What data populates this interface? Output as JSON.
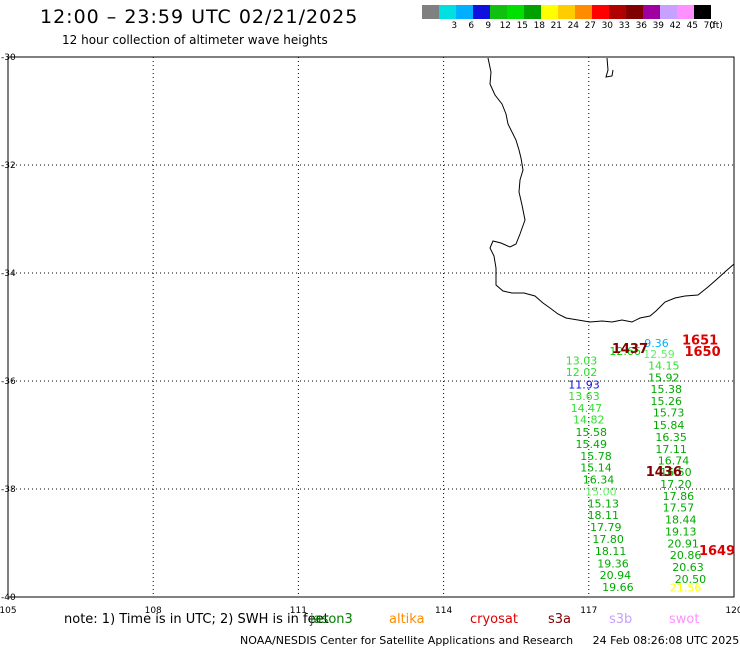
{
  "header": {
    "title": "12:00 – 23:59 UTC 02/21/2025",
    "subtitle": "12 hour collection of altimeter wave heights"
  },
  "scale": {
    "unit": "(ft)",
    "levels": [
      {
        "label": "",
        "color": "#808080"
      },
      {
        "label": "3",
        "color": "#00e0e0"
      },
      {
        "label": "6",
        "color": "#00b0ff"
      },
      {
        "label": "9",
        "color": "#1010e0"
      },
      {
        "label": "12",
        "color": "#10c010"
      },
      {
        "label": "15",
        "color": "#00e000"
      },
      {
        "label": "18",
        "color": "#00a000"
      },
      {
        "label": "21",
        "color": "#ffff00"
      },
      {
        "label": "24",
        "color": "#ffcc00"
      },
      {
        "label": "27",
        "color": "#ff8c00"
      },
      {
        "label": "30",
        "color": "#ff0000"
      },
      {
        "label": "33",
        "color": "#b00000"
      },
      {
        "label": "36",
        "color": "#800000"
      },
      {
        "label": "39",
        "color": "#a000a0"
      },
      {
        "label": "42",
        "color": "#c8a0ff"
      },
      {
        "label": "45",
        "color": "#ff90ff"
      },
      {
        "label": "70",
        "color": "#000000"
      }
    ]
  },
  "map": {
    "lat_range": [
      -40,
      -30
    ],
    "lon_range": [
      105,
      120
    ],
    "lat_ticks": [
      "-30",
      "-32",
      "-34",
      "-36",
      "-38",
      "-40"
    ],
    "lon_ticks": [
      "105",
      "108",
      "111",
      "114",
      "117",
      "120"
    ],
    "grid": "dotted",
    "observations": [
      {
        "v": "12.66",
        "lon": 117.75,
        "lat": -35.52,
        "color": "#00cc00"
      },
      {
        "v": "13.03",
        "lon": 116.85,
        "lat": -35.69,
        "color": "#33dd33"
      },
      {
        "v": "12.02",
        "lon": 116.85,
        "lat": -35.91,
        "color": "#33dd33"
      },
      {
        "v": "11.93",
        "lon": 116.9,
        "lat": -36.14,
        "color": "#1010e0"
      },
      {
        "v": "13.63",
        "lon": 116.9,
        "lat": -36.35,
        "color": "#33dd33"
      },
      {
        "v": "14.47",
        "lon": 116.95,
        "lat": -36.57,
        "color": "#33dd33"
      },
      {
        "v": "14.82",
        "lon": 117.0,
        "lat": -36.79,
        "color": "#33dd33"
      },
      {
        "v": "15.58",
        "lon": 117.05,
        "lat": -37.02,
        "color": "#00aa00"
      },
      {
        "v": "15.49",
        "lon": 117.05,
        "lat": -37.24,
        "color": "#00aa00"
      },
      {
        "v": "15.78",
        "lon": 117.15,
        "lat": -37.46,
        "color": "#00aa00"
      },
      {
        "v": "15.14",
        "lon": 117.15,
        "lat": -37.68,
        "color": "#00aa00"
      },
      {
        "v": "16.34",
        "lon": 117.2,
        "lat": -37.9,
        "color": "#00aa00"
      },
      {
        "v": "15.00",
        "lon": 117.25,
        "lat": -38.12,
        "color": "#66ee66"
      },
      {
        "v": "15.13",
        "lon": 117.3,
        "lat": -38.34,
        "color": "#00aa00"
      },
      {
        "v": "18.11",
        "lon": 117.3,
        "lat": -38.56,
        "color": "#00aa00"
      },
      {
        "v": "17.79",
        "lon": 117.35,
        "lat": -38.78,
        "color": "#00aa00"
      },
      {
        "v": "17.80",
        "lon": 117.4,
        "lat": -39.0,
        "color": "#00aa00"
      },
      {
        "v": "18.11",
        "lon": 117.45,
        "lat": -39.22,
        "color": "#00aa00"
      },
      {
        "v": "19.36",
        "lon": 117.5,
        "lat": -39.45,
        "color": "#00aa00"
      },
      {
        "v": "20.94",
        "lon": 117.55,
        "lat": -39.67,
        "color": "#00aa00"
      },
      {
        "v": "19.66",
        "lon": 117.6,
        "lat": -39.89,
        "color": "#00aa00"
      },
      {
        "v": "9.36",
        "lon": 118.4,
        "lat": -35.37,
        "color": "#00b0ff"
      },
      {
        "v": "12.59",
        "lon": 118.45,
        "lat": -35.57,
        "color": "#66ee66"
      },
      {
        "v": "14.15",
        "lon": 118.55,
        "lat": -35.79,
        "color": "#33dd33"
      },
      {
        "v": "15.92",
        "lon": 118.55,
        "lat": -36.01,
        "color": "#00aa00"
      },
      {
        "v": "15.38",
        "lon": 118.6,
        "lat": -36.22,
        "color": "#00aa00"
      },
      {
        "v": "15.26",
        "lon": 118.6,
        "lat": -36.44,
        "color": "#00aa00"
      },
      {
        "v": "15.73",
        "lon": 118.65,
        "lat": -36.66,
        "color": "#00aa00"
      },
      {
        "v": "15.84",
        "lon": 118.65,
        "lat": -36.89,
        "color": "#00aa00"
      },
      {
        "v": "16.35",
        "lon": 118.7,
        "lat": -37.11,
        "color": "#00aa00"
      },
      {
        "v": "17.11",
        "lon": 118.7,
        "lat": -37.33,
        "color": "#00aa00"
      },
      {
        "v": "16.74",
        "lon": 118.75,
        "lat": -37.55,
        "color": "#00aa00"
      },
      {
        "v": "16.50",
        "lon": 118.8,
        "lat": -37.76,
        "color": "#00aa00"
      },
      {
        "v": "17.20",
        "lon": 118.8,
        "lat": -37.98,
        "color": "#00aa00"
      },
      {
        "v": "17.86",
        "lon": 118.85,
        "lat": -38.2,
        "color": "#00aa00"
      },
      {
        "v": "17.57",
        "lon": 118.85,
        "lat": -38.42,
        "color": "#00aa00"
      },
      {
        "v": "18.44",
        "lon": 118.9,
        "lat": -38.64,
        "color": "#00aa00"
      },
      {
        "v": "19.13",
        "lon": 118.9,
        "lat": -38.86,
        "color": "#00aa00"
      },
      {
        "v": "20.91",
        "lon": 118.95,
        "lat": -39.08,
        "color": "#00aa00"
      },
      {
        "v": "20.86",
        "lon": 119.0,
        "lat": -39.3,
        "color": "#00aa00"
      },
      {
        "v": "20.63",
        "lon": 119.05,
        "lat": -39.52,
        "color": "#00aa00"
      },
      {
        "v": "20.50",
        "lon": 119.1,
        "lat": -39.74,
        "color": "#00aa00"
      },
      {
        "v": "21.56",
        "lon": 119.0,
        "lat": -39.9,
        "color": "#ffff00"
      }
    ],
    "time_labels": [
      {
        "v": "1437",
        "lon": 117.85,
        "lat": -35.48,
        "color": "#800000"
      },
      {
        "v": "1436",
        "lon": 118.55,
        "lat": -37.76,
        "color": "#800000"
      },
      {
        "v": "1651",
        "lon": 119.3,
        "lat": -35.32,
        "color": "#dd0000"
      },
      {
        "v": "1650",
        "lon": 119.35,
        "lat": -35.54,
        "color": "#dd0000"
      },
      {
        "v": "1649",
        "lon": 119.65,
        "lat": -39.22,
        "color": "#dd0000"
      }
    ]
  },
  "note": "note: 1) Time is in UTC; 2) SWH is in feet",
  "satellites": [
    {
      "name": "jason3",
      "color": "#008000"
    },
    {
      "name": "altika",
      "color": "#ff8c00"
    },
    {
      "name": "cryosat",
      "color": "#dd0000"
    },
    {
      "name": "s3a",
      "color": "#800000"
    },
    {
      "name": "s3b",
      "color": "#c8a0ff"
    },
    {
      "name": "swot",
      "color": "#ff90ff"
    }
  ],
  "footer": {
    "credit": "NOAA/NESDIS Center for Satellite Applications and Research",
    "timestamp": "24 Feb 08:26:08 UTC 2025"
  }
}
